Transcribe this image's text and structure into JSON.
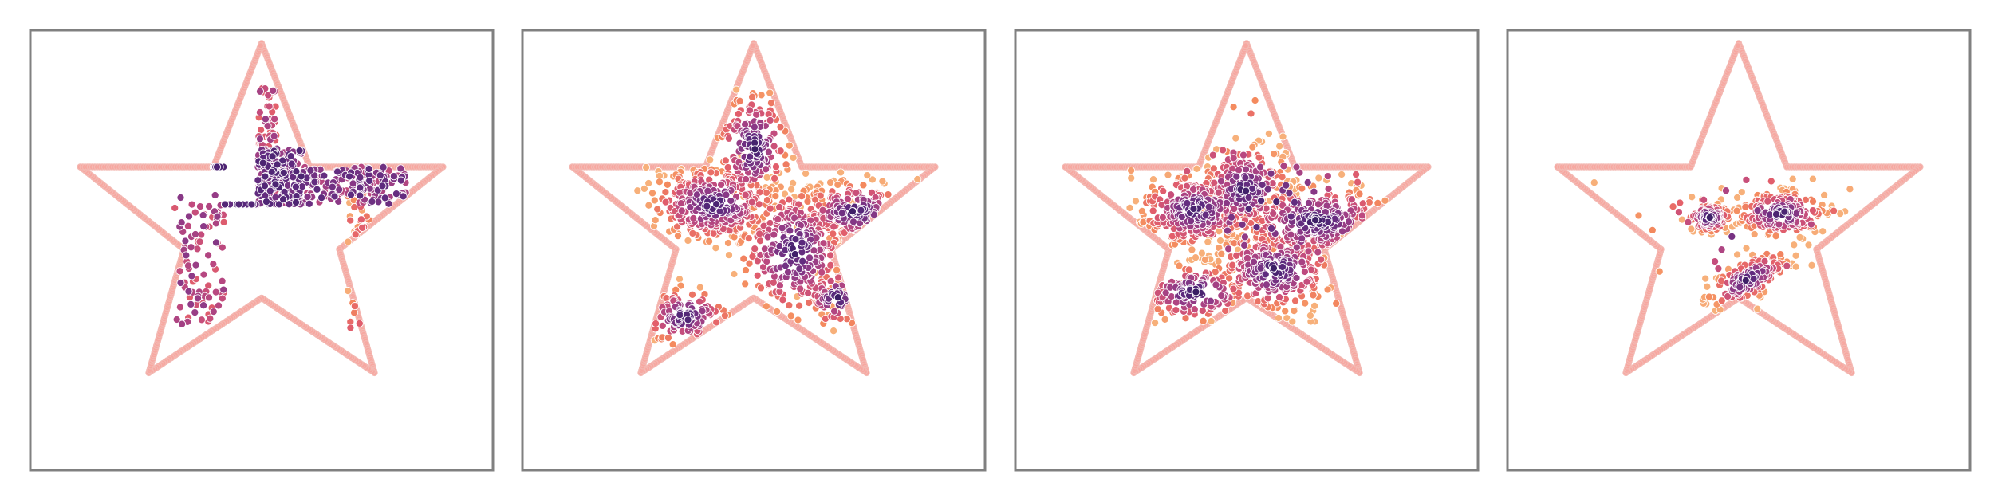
{
  "chart_data": {
    "type": "scatter",
    "title": "",
    "xlabel": "",
    "ylabel": "",
    "grid": false,
    "xlim": [
      -1.25,
      1.25
    ],
    "ylim": [
      -1.3,
      1.05
    ],
    "outline_color": "#f7a7a0",
    "colormap": [
      "#311b5e",
      "#5c2a7e",
      "#8e3a87",
      "#bf4a7f",
      "#e35f6b",
      "#f48a5e",
      "#f7b07a"
    ],
    "star_vertices": [
      [
        0,
        0.98
      ],
      [
        0.26,
        0.32
      ],
      [
        0.98,
        0.32
      ],
      [
        0.42,
        -0.12
      ],
      [
        0.61,
        -0.78
      ],
      [
        0,
        -0.38
      ],
      [
        -0.61,
        -0.78
      ],
      [
        -0.42,
        -0.12
      ],
      [
        -0.98,
        0.32
      ],
      [
        -0.26,
        0.32
      ]
    ],
    "panels": [
      {
        "name": "panel-1",
        "clusters": [
          {
            "rect": [
              -0.48,
              0.32,
              -0.2,
              0.32
            ],
            "n": 260,
            "density": 0.05
          },
          {
            "rect": [
              -0.2,
              0.12,
              -0.02,
              0.12
            ],
            "n": 80,
            "density": 0.08
          },
          {
            "rect": [
              -0.02,
              0.74,
              0.08,
              0.12
            ],
            "n": 70,
            "density": 0.3
          },
          {
            "rect": [
              -0.02,
              0.12,
              0.22,
              0.42
            ],
            "n": 260,
            "density": 0.05
          },
          {
            "rect": [
              0.22,
              0.32,
              0.78,
              0.12
            ],
            "n": 170,
            "density": 0.12
          },
          {
            "rect": [
              -0.48,
              -0.52,
              -0.2,
              0.18
            ],
            "n": 90,
            "density": 0.25
          },
          {
            "rect": [
              0.46,
              -0.55,
              0.58,
              0.18
            ],
            "n": 35,
            "density": 0.6
          }
        ]
      },
      {
        "name": "panel-2",
        "clusters": [
          {
            "center": [
              -0.22,
              0.12
            ],
            "spread": [
              0.17,
              0.1
            ],
            "n": 320
          },
          {
            "center": [
              0.22,
              -0.13
            ],
            "spread": [
              0.15,
              0.18
            ],
            "n": 340
          },
          {
            "center": [
              0.0,
              0.42
            ],
            "spread": [
              0.1,
              0.16
            ],
            "n": 180
          },
          {
            "center": [
              0.55,
              0.08
            ],
            "spread": [
              0.15,
              0.08
            ],
            "n": 180
          },
          {
            "center": [
              -0.37,
              -0.48
            ],
            "spread": [
              0.12,
              0.08
            ],
            "n": 110
          },
          {
            "center": [
              0.45,
              -0.38
            ],
            "spread": [
              0.09,
              0.08
            ],
            "n": 60
          }
        ]
      },
      {
        "name": "panel-3",
        "clusters": [
          {
            "center": [
              -0.28,
              0.09
            ],
            "spread": [
              0.15,
              0.1
            ],
            "n": 310
          },
          {
            "center": [
              -0.01,
              0.2
            ],
            "spread": [
              0.12,
              0.12
            ],
            "n": 230
          },
          {
            "center": [
              0.38,
              0.03
            ],
            "spread": [
              0.22,
              0.1
            ],
            "n": 300
          },
          {
            "center": [
              0.15,
              -0.23
            ],
            "spread": [
              0.16,
              0.11
            ],
            "n": 300
          },
          {
            "center": [
              -0.28,
              -0.35
            ],
            "spread": [
              0.16,
              0.08
            ],
            "n": 140
          },
          {
            "center": [
              0.12,
              0.1
            ],
            "spread": [
              0.38,
              0.3
            ],
            "n": 90
          }
        ]
      },
      {
        "name": "panel-4",
        "clusters": [
          {
            "center": [
              -0.16,
              0.05
            ],
            "spread": [
              0.06,
              0.04
            ],
            "n": 130
          },
          {
            "center": [
              0.23,
              0.07
            ],
            "spread": [
              0.12,
              0.06
            ],
            "n": 220
          },
          {
            "center": [
              0.05,
              -0.28
            ],
            "spread": [
              0.12,
              0.05
            ],
            "tilt": 0.5,
            "n": 160
          },
          {
            "center": [
              0.05,
              0.0
            ],
            "spread": [
              0.3,
              0.2
            ],
            "n": 25
          }
        ]
      }
    ]
  }
}
